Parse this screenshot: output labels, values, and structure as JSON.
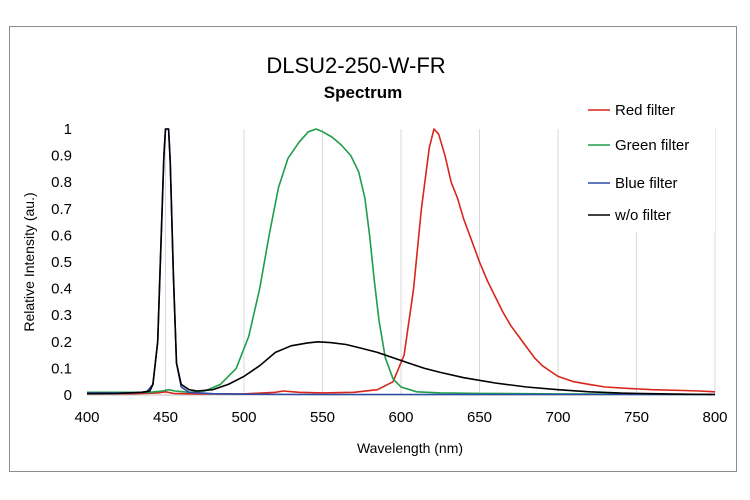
{
  "chart_data": {
    "type": "line",
    "title": "DLSU2-250-W-FR",
    "subtitle": "Spectrum",
    "xlabel": "Wavelength (nm)",
    "ylabel": "Relative Intensity (au.)",
    "xlim": [
      400,
      800
    ],
    "ylim": [
      0,
      1
    ],
    "xticks": [
      400,
      450,
      500,
      550,
      600,
      650,
      700,
      750,
      800
    ],
    "yticks": [
      0,
      0.1,
      0.2,
      0.3,
      0.4,
      0.5,
      0.6,
      0.7,
      0.8,
      0.9,
      1
    ],
    "ytick_labels": [
      "0",
      "0.1",
      "0.2",
      "0.3",
      "0.4",
      "0.5",
      "0.6",
      "0.7",
      "0.8",
      "0.9",
      "1"
    ],
    "grid": "vertical",
    "legend_position": "top-right",
    "series": [
      {
        "name": "Red filter",
        "color": "#d9261c",
        "points": [
          [
            400,
            0.005
          ],
          [
            430,
            0.005
          ],
          [
            445,
            0.008
          ],
          [
            450,
            0.012
          ],
          [
            455,
            0.006
          ],
          [
            470,
            0.004
          ],
          [
            500,
            0.004
          ],
          [
            520,
            0.01
          ],
          [
            525,
            0.015
          ],
          [
            535,
            0.01
          ],
          [
            550,
            0.008
          ],
          [
            570,
            0.01
          ],
          [
            585,
            0.02
          ],
          [
            595,
            0.05
          ],
          [
            602,
            0.15
          ],
          [
            608,
            0.4
          ],
          [
            613,
            0.7
          ],
          [
            618,
            0.93
          ],
          [
            621,
            1.0
          ],
          [
            624,
            0.98
          ],
          [
            628,
            0.9
          ],
          [
            632,
            0.8
          ],
          [
            636,
            0.74
          ],
          [
            640,
            0.66
          ],
          [
            645,
            0.58
          ],
          [
            650,
            0.5
          ],
          [
            655,
            0.43
          ],
          [
            660,
            0.37
          ],
          [
            665,
            0.31
          ],
          [
            670,
            0.26
          ],
          [
            675,
            0.22
          ],
          [
            680,
            0.18
          ],
          [
            685,
            0.14
          ],
          [
            690,
            0.11
          ],
          [
            695,
            0.09
          ],
          [
            700,
            0.07
          ],
          [
            710,
            0.05
          ],
          [
            720,
            0.04
          ],
          [
            730,
            0.03
          ],
          [
            745,
            0.025
          ],
          [
            760,
            0.02
          ],
          [
            780,
            0.017
          ],
          [
            790,
            0.015
          ],
          [
            800,
            0.012
          ]
        ]
      },
      {
        "name": "Green filter",
        "color": "#1e9e4a",
        "points": [
          [
            400,
            0.01
          ],
          [
            440,
            0.01
          ],
          [
            448,
            0.015
          ],
          [
            452,
            0.02
          ],
          [
            456,
            0.015
          ],
          [
            465,
            0.01
          ],
          [
            475,
            0.015
          ],
          [
            485,
            0.04
          ],
          [
            495,
            0.1
          ],
          [
            503,
            0.22
          ],
          [
            510,
            0.4
          ],
          [
            516,
            0.6
          ],
          [
            522,
            0.78
          ],
          [
            528,
            0.89
          ],
          [
            535,
            0.95
          ],
          [
            541,
            0.99
          ],
          [
            546,
            1.0
          ],
          [
            550,
            0.99
          ],
          [
            556,
            0.97
          ],
          [
            562,
            0.94
          ],
          [
            568,
            0.9
          ],
          [
            573,
            0.84
          ],
          [
            577,
            0.74
          ],
          [
            580,
            0.6
          ],
          [
            583,
            0.43
          ],
          [
            586,
            0.28
          ],
          [
            590,
            0.14
          ],
          [
            595,
            0.06
          ],
          [
            600,
            0.03
          ],
          [
            610,
            0.012
          ],
          [
            625,
            0.008
          ],
          [
            650,
            0.006
          ],
          [
            700,
            0.004
          ],
          [
            750,
            0.003
          ],
          [
            800,
            0.002
          ]
        ]
      },
      {
        "name": "Blue filter",
        "color": "#2a4da8",
        "points": [
          [
            400,
            0.008
          ],
          [
            430,
            0.008
          ],
          [
            438,
            0.012
          ],
          [
            442,
            0.04
          ],
          [
            445,
            0.2
          ],
          [
            447,
            0.55
          ],
          [
            449,
            0.9
          ],
          [
            450,
            1.0
          ],
          [
            452,
            1.0
          ],
          [
            453,
            0.88
          ],
          [
            455,
            0.45
          ],
          [
            457,
            0.12
          ],
          [
            460,
            0.03
          ],
          [
            465,
            0.01
          ],
          [
            480,
            0.005
          ],
          [
            500,
            0.003
          ],
          [
            550,
            0.002
          ],
          [
            600,
            0.002
          ],
          [
            700,
            0.002
          ],
          [
            800,
            0.002
          ]
        ]
      },
      {
        "name": "w/o filter",
        "color": "#000000",
        "points": [
          [
            400,
            0.005
          ],
          [
            420,
            0.006
          ],
          [
            435,
            0.01
          ],
          [
            440,
            0.015
          ],
          [
            442,
            0.04
          ],
          [
            445,
            0.2
          ],
          [
            447,
            0.55
          ],
          [
            449,
            0.9
          ],
          [
            450,
            1.0
          ],
          [
            452,
            1.0
          ],
          [
            453,
            0.88
          ],
          [
            455,
            0.45
          ],
          [
            457,
            0.12
          ],
          [
            460,
            0.04
          ],
          [
            465,
            0.02
          ],
          [
            470,
            0.015
          ],
          [
            480,
            0.02
          ],
          [
            490,
            0.04
          ],
          [
            500,
            0.07
          ],
          [
            510,
            0.11
          ],
          [
            520,
            0.16
          ],
          [
            530,
            0.185
          ],
          [
            540,
            0.195
          ],
          [
            547,
            0.2
          ],
          [
            555,
            0.197
          ],
          [
            565,
            0.19
          ],
          [
            575,
            0.175
          ],
          [
            585,
            0.16
          ],
          [
            595,
            0.14
          ],
          [
            605,
            0.12
          ],
          [
            615,
            0.1
          ],
          [
            625,
            0.085
          ],
          [
            640,
            0.065
          ],
          [
            660,
            0.045
          ],
          [
            680,
            0.03
          ],
          [
            700,
            0.02
          ],
          [
            720,
            0.012
          ],
          [
            740,
            0.007
          ],
          [
            760,
            0.005
          ],
          [
            780,
            0.003
          ],
          [
            800,
            0.002
          ]
        ]
      }
    ]
  }
}
